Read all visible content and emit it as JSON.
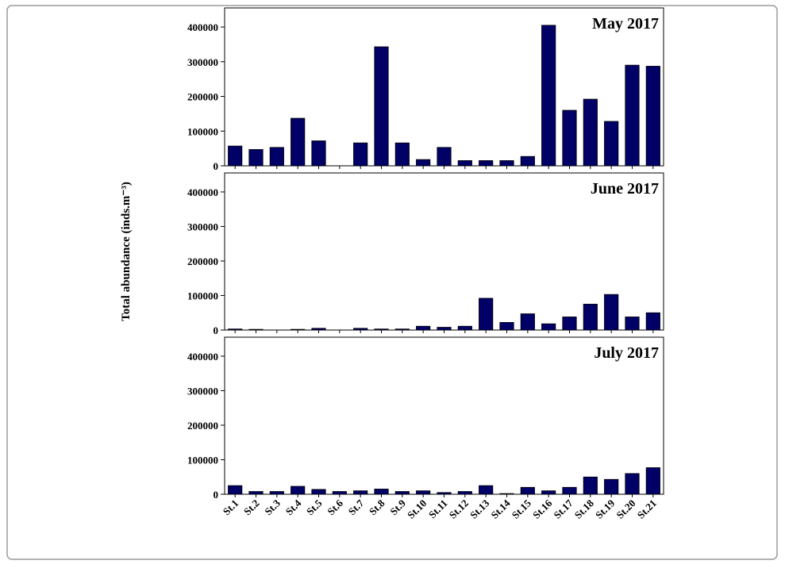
{
  "chart_data": [
    {
      "type": "bar",
      "title": "May 2017",
      "color": "#000066",
      "categories": [
        null,
        null,
        null,
        null,
        null,
        null,
        null,
        null,
        null,
        null,
        null,
        null,
        null,
        null,
        null,
        null,
        null,
        null,
        null,
        null,
        null
      ],
      "values": [
        57000,
        47000,
        53000,
        137000,
        72000,
        0,
        66000,
        343000,
        66000,
        18000,
        53000,
        15000,
        15000,
        15000,
        27000,
        405000,
        160000,
        192000,
        128000,
        290000,
        287000
      ],
      "ylim": [
        0,
        455000
      ],
      "yticks": [
        0,
        100000,
        200000,
        300000,
        400000
      ]
    },
    {
      "type": "bar",
      "title": "June 2017",
      "color": "#000066",
      "ylabel": "Total abundance (inds.m⁻³)",
      "categories": [
        null,
        null,
        null,
        null,
        null,
        null,
        null,
        null,
        null,
        null,
        null,
        null,
        null,
        null,
        null,
        null,
        null,
        null,
        null,
        null,
        null
      ],
      "values": [
        3000,
        2000,
        0,
        2000,
        5000,
        0,
        5000,
        3000,
        3000,
        11000,
        8000,
        11000,
        92000,
        22000,
        47000,
        18000,
        38000,
        75000,
        103000,
        38000,
        50000
      ],
      "ylim": [
        0,
        455000
      ],
      "yticks": [
        0,
        100000,
        200000,
        300000,
        400000
      ]
    },
    {
      "type": "bar",
      "title": "July 2017",
      "color": "#000066",
      "categories": [
        "St.1",
        "St.2",
        "St.3",
        "St.4",
        "St.5",
        "St.6",
        "St.7",
        "St.8",
        "St.9",
        "St.10",
        "St.11",
        "St.12",
        "St.13",
        "St.14",
        "St.15",
        "St.16",
        "St.17",
        "St.18",
        "St.19",
        "St.20",
        "St.21"
      ],
      "values": [
        25000,
        8000,
        8000,
        23000,
        14000,
        8000,
        10000,
        15000,
        8000,
        10000,
        5000,
        8000,
        25000,
        2000,
        20000,
        10000,
        20000,
        50000,
        43000,
        60000,
        77000
      ],
      "ylim": [
        0,
        455000
      ],
      "yticks": [
        0,
        100000,
        200000,
        300000,
        400000
      ]
    }
  ]
}
